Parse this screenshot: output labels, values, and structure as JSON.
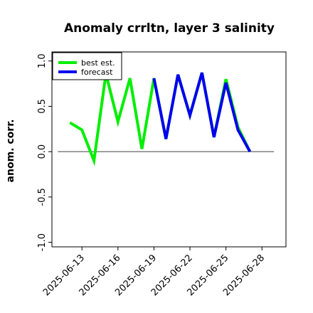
{
  "chart_data": {
    "type": "line",
    "title": "Anomaly crrltn, layer 3 salinity",
    "xlabel": "",
    "ylabel": "anom. corr.",
    "ylim": [
      -1.05,
      1.1
    ],
    "yticks": [
      -1.0,
      -0.5,
      0.0,
      0.5,
      1.0
    ],
    "ytick_labels": [
      "-1.0",
      "-0.5",
      "0.0",
      "0.5",
      "1.0"
    ],
    "xlim": [
      "2025-06-10T12:00",
      "2025-06-30T00:00"
    ],
    "xticks": [
      "2025-06-13",
      "2025-06-16",
      "2025-06-19",
      "2025-06-22",
      "2025-06-25",
      "2025-06-28"
    ],
    "xtick_colors": [
      "#000000",
      "#000000",
      "#228B22",
      "#000000",
      "#000000",
      "#000000"
    ],
    "reference_line": {
      "y": 0.0,
      "x_start": "2025-06-11",
      "x_end": "2025-06-29"
    },
    "grid": false,
    "legend_position": "top-left",
    "series": [
      {
        "name": "best est.",
        "color": "#00ee00",
        "x": [
          "2025-06-12",
          "2025-06-13",
          "2025-06-14",
          "2025-06-15",
          "2025-06-16",
          "2025-06-17",
          "2025-06-18",
          "2025-06-19",
          "2025-06-20",
          "2025-06-21",
          "2025-06-22",
          "2025-06-23",
          "2025-06-24",
          "2025-06-25",
          "2025-06-26",
          "2025-06-27"
        ],
        "values": [
          0.32,
          0.24,
          -0.1,
          0.86,
          0.33,
          0.81,
          0.03,
          0.81,
          0.14,
          0.85,
          0.4,
          0.87,
          0.16,
          0.8,
          0.27,
          0.0
        ]
      },
      {
        "name": "forecast",
        "color": "#0000ee",
        "x": [
          "2025-06-19",
          "2025-06-20",
          "2025-06-21",
          "2025-06-22",
          "2025-06-23",
          "2025-06-24",
          "2025-06-25",
          "2025-06-26",
          "2025-06-27"
        ],
        "values": [
          0.81,
          0.14,
          0.85,
          0.4,
          0.87,
          0.16,
          0.76,
          0.24,
          0.0
        ]
      }
    ]
  }
}
